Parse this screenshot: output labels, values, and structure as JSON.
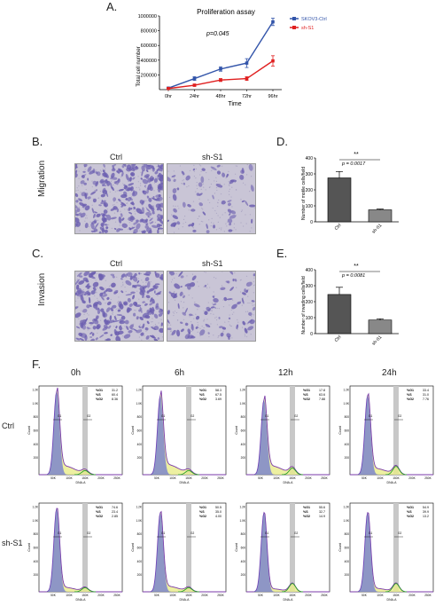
{
  "panels": {
    "a": "A.",
    "b": "B.",
    "c": "C.",
    "d": "D.",
    "e": "E.",
    "f": "F."
  },
  "colors": {
    "ctrl": "#3355aa",
    "sh": "#e02020",
    "micrograph_bg": "#c9c5d6",
    "cell": "#6c5fb0",
    "hist_fill": "#e8ec8a",
    "gate": "#c8c8c8"
  },
  "chart_data": [
    {
      "id": "proliferation",
      "type": "line",
      "title": "Proliferation assay",
      "xlabel": "Time",
      "ylabel": "Total cell number",
      "categories": [
        "0hr",
        "24hr",
        "48hr",
        "72hr",
        "96hr"
      ],
      "ylim": [
        0,
        1000000
      ],
      "yticks": [
        "200000",
        "400000",
        "600000",
        "800000",
        "1000000"
      ],
      "annotation": "p=0.045",
      "legend_position": "top-right",
      "series": [
        {
          "name": "SKOV3-Ctrl",
          "values": [
            20000,
            150000,
            280000,
            360000,
            920000
          ],
          "errors": [
            10000,
            25000,
            30000,
            60000,
            50000
          ]
        },
        {
          "name": "sh-S1",
          "values": [
            15000,
            60000,
            130000,
            150000,
            390000
          ],
          "errors": [
            8000,
            15000,
            20000,
            25000,
            70000
          ]
        }
      ]
    },
    {
      "id": "migration",
      "type": "bar",
      "ylabel": "Number of motile cells/field",
      "categories": [
        "Ctrl",
        "sh-S1"
      ],
      "values": [
        275,
        75
      ],
      "errors": [
        40,
        5
      ],
      "ylim": [
        0,
        400
      ],
      "significance": "**",
      "pvalue": "p = 0.0017"
    },
    {
      "id": "invasion",
      "type": "bar",
      "ylabel": "Number of invading cells/field",
      "categories": [
        "Ctrl",
        "sh-S1"
      ],
      "values": [
        245,
        85
      ],
      "errors": [
        45,
        8
      ],
      "ylim": [
        0,
        400
      ],
      "significance": "**",
      "pvalue": "p = 0.0081"
    }
  ],
  "micrographs": {
    "col_ctrl": "Ctrl",
    "col_sh": "sh-S1",
    "row_migration": "Migration",
    "row_invasion": "Invasion"
  },
  "flow": {
    "times": [
      "0h",
      "6h",
      "12h",
      "24h"
    ],
    "rows": [
      "Ctrl",
      "sh-S1"
    ],
    "ylabel": "Count",
    "xlabel": "DNA-A",
    "gate_labels": [
      "G1",
      "G2"
    ],
    "yticks": [
      "1.2K",
      "1.0K",
      "800",
      "600",
      "400",
      "200"
    ],
    "xticks": [
      "50K",
      "100K",
      "150K",
      "200K",
      "250K"
    ],
    "stat_labels": [
      "%G1",
      "%S",
      "%G2"
    ],
    "stats": [
      [
        [
          "31.2",
          "60.4",
          "8.36"
        ],
        [
          "58.3",
          "67.5",
          "3.69"
        ],
        [
          "17.8",
          "63.6",
          "7.88"
        ],
        [
          "33.4",
          "31.0",
          "7.76"
        ]
      ],
      [
        [
          "74.6",
          "23.4",
          "2.85"
        ],
        [
          "50.5",
          "35.0",
          "4.00"
        ],
        [
          "55.6",
          "32.7",
          "14.9"
        ],
        [
          "54.9",
          "39.9",
          "13.2"
        ]
      ]
    ]
  }
}
